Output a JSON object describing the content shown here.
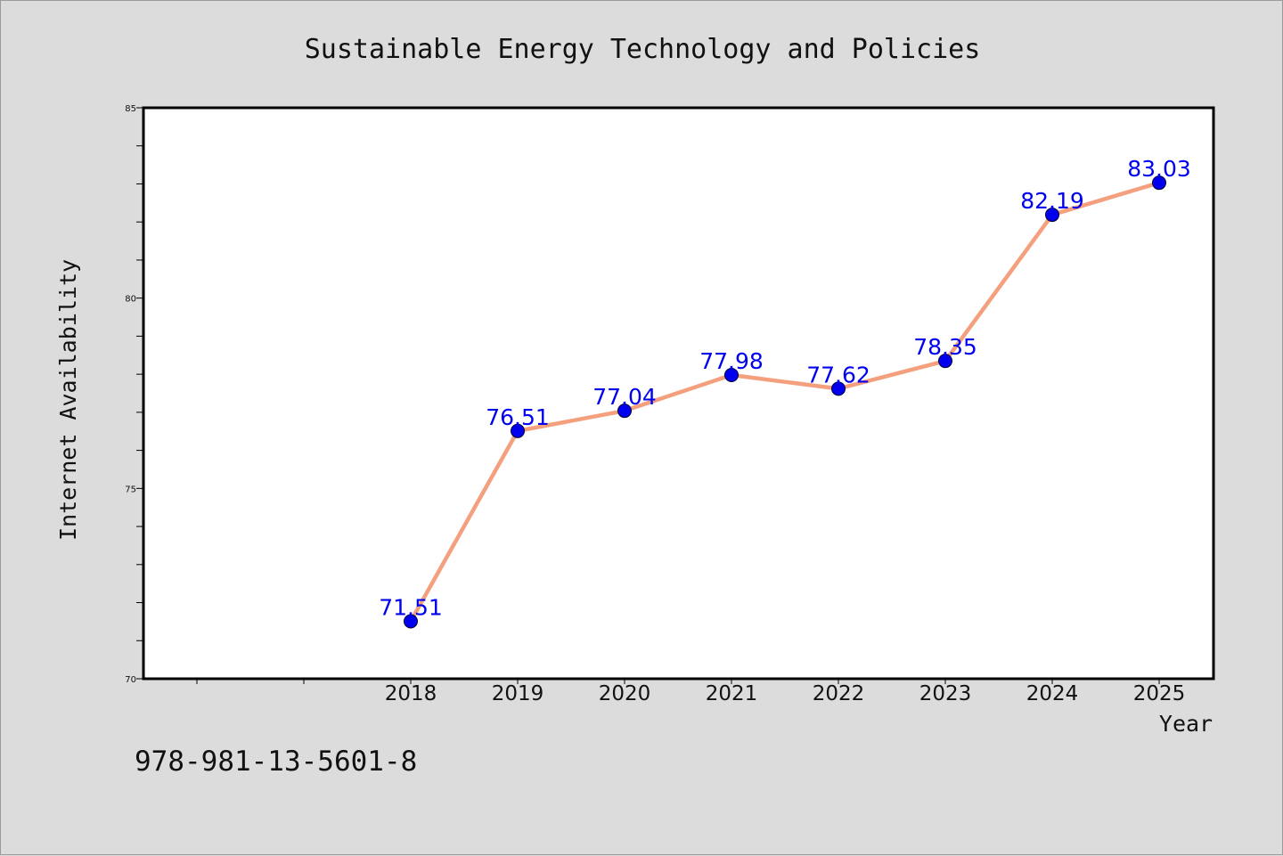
{
  "chart_data": {
    "type": "line",
    "title": "Sustainable Energy Technology and Policies",
    "xlabel": "Year",
    "ylabel": "Internet Availability",
    "categories": [
      "2018",
      "2019",
      "2020",
      "2021",
      "2022",
      "2023",
      "2024",
      "2025"
    ],
    "series": [
      {
        "values": [
          71.51,
          76.51,
          77.04,
          77.98,
          77.62,
          78.35,
          82.19,
          83.03
        ]
      }
    ],
    "data_labels": [
      "71.51",
      "76.51",
      "77.04",
      "77.98",
      "77.62",
      "78.35",
      "82.19",
      "83.03"
    ],
    "ylim": [
      70,
      85
    ],
    "yticks": [
      "70",
      "75",
      "80",
      "85"
    ],
    "grid": false,
    "line_color": "#f4a07e",
    "marker_color": "#0000ee",
    "label_color": "#0000ee",
    "background_color": "#dcdcdc",
    "plot_background": "#ffffff"
  },
  "footnote": "978-981-13-5601-8"
}
